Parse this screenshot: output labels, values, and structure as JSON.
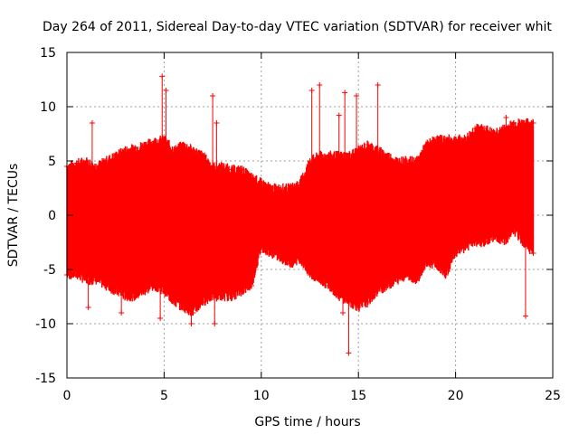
{
  "chart_data": {
    "type": "scatter",
    "title": "Day 264 of 2011, Sidereal Day-to-day VTEC variation (SDTVAR) for receiver whit",
    "xlabel": "GPS time / hours",
    "ylabel": "SDTVAR / TECUs",
    "xlim": [
      0,
      25
    ],
    "ylim": [
      -15,
      15
    ],
    "xticks": [
      0,
      5,
      10,
      15,
      20,
      25
    ],
    "yticks": [
      -15,
      -10,
      -5,
      0,
      5,
      10,
      15
    ],
    "grid": true,
    "marker": "+",
    "color": "#ff0000",
    "series": [
      {
        "name": "SDTVAR",
        "envelope": {
          "x": [
            0,
            0.5,
            1,
            1.5,
            2,
            2.5,
            3,
            3.5,
            4,
            4.5,
            5,
            5.5,
            6,
            6.5,
            7,
            7.5,
            8,
            8.5,
            9,
            9.5,
            10,
            10.5,
            11,
            11.5,
            12,
            12.5,
            13,
            13.5,
            14,
            14.5,
            15,
            15.5,
            16,
            16.5,
            17,
            17.5,
            18,
            18.5,
            19,
            19.5,
            20,
            20.5,
            21,
            21.5,
            22,
            22.5,
            23,
            23.5,
            24
          ],
          "upper": [
            4.5,
            4.8,
            5.0,
            4.5,
            5.0,
            5.5,
            6.0,
            6.2,
            6.5,
            6.8,
            7.0,
            6.0,
            6.5,
            6.0,
            5.5,
            4.5,
            4.5,
            4.2,
            4.2,
            3.5,
            3.0,
            2.5,
            2.5,
            2.5,
            3.0,
            5.0,
            5.5,
            5.5,
            5.5,
            5.5,
            6.0,
            6.5,
            6.0,
            5.5,
            5.0,
            5.0,
            5.0,
            6.5,
            7.0,
            7.0,
            7.0,
            7.0,
            8.0,
            8.0,
            7.5,
            8.0,
            8.5,
            8.5,
            8.5
          ],
          "lower": [
            -5.5,
            -5.5,
            -6.0,
            -6.0,
            -6.5,
            -7.0,
            -7.5,
            -7.5,
            -7.0,
            -6.5,
            -7.0,
            -8.0,
            -8.5,
            -9.0,
            -8.0,
            -7.5,
            -7.5,
            -7.5,
            -7.0,
            -6.5,
            -3.0,
            -3.5,
            -4.0,
            -4.5,
            -4.0,
            -5.5,
            -6.0,
            -6.5,
            -7.5,
            -8.0,
            -8.5,
            -8.0,
            -7.0,
            -6.5,
            -6.0,
            -5.5,
            -6.0,
            -4.5,
            -4.5,
            -5.5,
            -3.5,
            -3.0,
            -2.5,
            -2.5,
            -2.0,
            -2.5,
            -1.5,
            -2.5,
            -3.5
          ]
        },
        "spikes": [
          {
            "x": 1.3,
            "y": 8.5
          },
          {
            "x": 1.1,
            "y": -8.5
          },
          {
            "x": 2.8,
            "y": -9.0
          },
          {
            "x": 4.9,
            "y": 12.8
          },
          {
            "x": 5.1,
            "y": 11.5
          },
          {
            "x": 4.8,
            "y": -9.5
          },
          {
            "x": 6.4,
            "y": -10.0
          },
          {
            "x": 7.5,
            "y": 11.0
          },
          {
            "x": 7.7,
            "y": 8.5
          },
          {
            "x": 7.6,
            "y": -10.0
          },
          {
            "x": 12.6,
            "y": 11.5
          },
          {
            "x": 13.0,
            "y": 12.0
          },
          {
            "x": 12.8,
            "y": -4.0
          },
          {
            "x": 14.0,
            "y": 9.2
          },
          {
            "x": 14.3,
            "y": 11.3
          },
          {
            "x": 14.5,
            "y": -12.7
          },
          {
            "x": 14.9,
            "y": 11.0
          },
          {
            "x": 14.2,
            "y": -9.0
          },
          {
            "x": 16.0,
            "y": 12.0
          },
          {
            "x": 22.6,
            "y": 9.0
          },
          {
            "x": 23.6,
            "y": -9.3
          },
          {
            "x": 23.9,
            "y": 8.5
          }
        ]
      }
    ]
  }
}
